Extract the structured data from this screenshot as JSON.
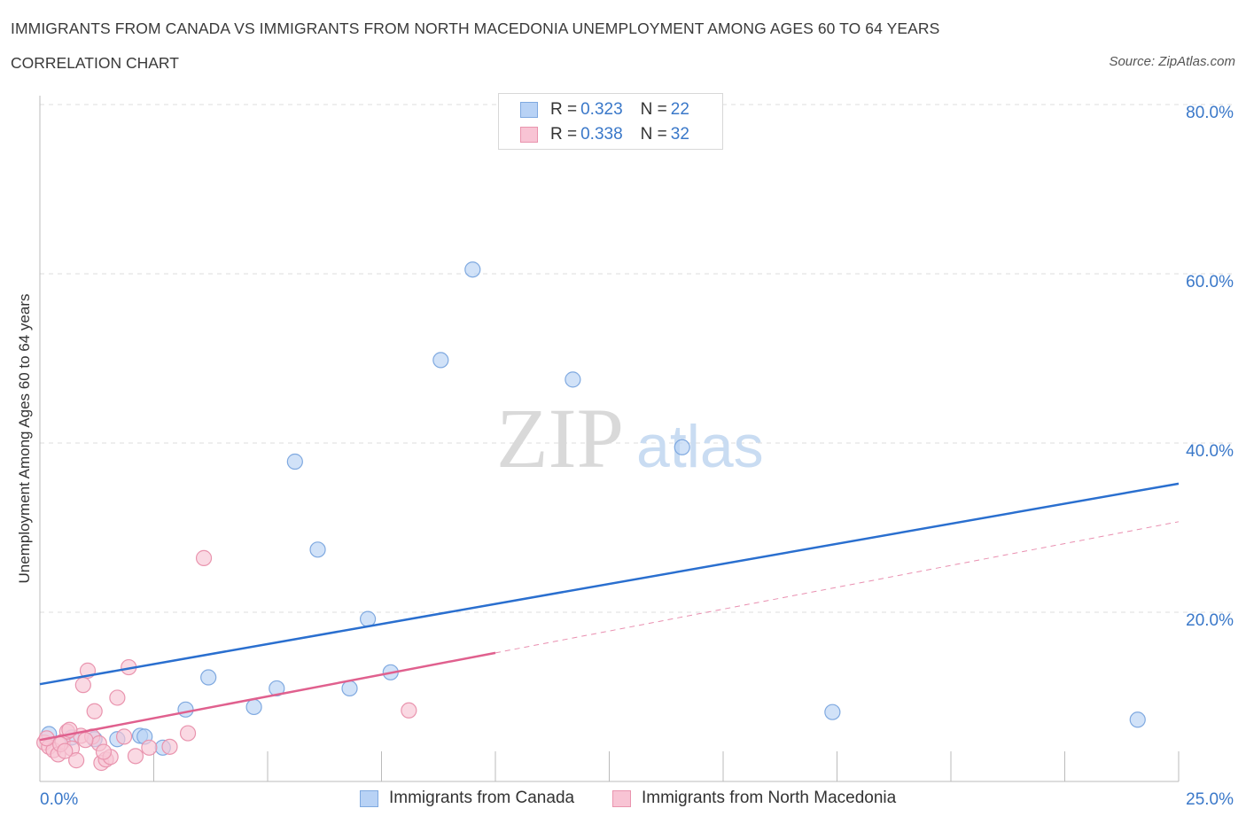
{
  "title": "IMMIGRANTS FROM CANADA VS IMMIGRANTS FROM NORTH MACEDONIA UNEMPLOYMENT AMONG AGES 60 TO 64 YEARS",
  "subtitle": "CORRELATION CHART",
  "source": "Source: ZipAtlas.com",
  "watermark": {
    "zip": "ZIP",
    "atlas": "atlas"
  },
  "colors": {
    "canada_fill": "#b8d2f5",
    "canada_stroke": "#7fa9e0",
    "canada_line": "#2a6fcf",
    "macedonia_fill": "#f8c4d4",
    "macedonia_stroke": "#e994ae",
    "macedonia_line": "#e0608e",
    "axis_text": "#3a78c9",
    "grid": "#dddddd"
  },
  "legend": {
    "rows": [
      {
        "r_label": "R =",
        "r_value": "0.323",
        "n_label": "N =",
        "n_value": "22"
      },
      {
        "r_label": "R =",
        "r_value": "0.338",
        "n_label": "N =",
        "n_value": "32"
      }
    ]
  },
  "chart_data": {
    "type": "scatter",
    "title": "IMMIGRANTS FROM CANADA VS IMMIGRANTS FROM NORTH MACEDONIA UNEMPLOYMENT AMONG AGES 60 TO 64 YEARS",
    "xlabel": "",
    "ylabel": "Unemployment Among Ages 60 to 64 years",
    "xlim": [
      0,
      25
    ],
    "ylim": [
      0,
      80
    ],
    "x_tick_labels": [
      "0.0%",
      "25.0%"
    ],
    "y_ticks": [
      20,
      40,
      60,
      80
    ],
    "y_tick_labels": [
      "20.0%",
      "40.0%",
      "60.0%",
      "80.0%"
    ],
    "legend_placement": "bottom",
    "series": [
      {
        "name": "Immigrants from Canada",
        "points": [
          [
            0.2,
            5.6
          ],
          [
            0.7,
            5.2
          ],
          [
            1.2,
            5.0
          ],
          [
            1.7,
            5.0
          ],
          [
            2.2,
            5.4
          ],
          [
            2.7,
            4.0
          ],
          [
            3.2,
            8.5
          ],
          [
            3.7,
            12.3
          ],
          [
            4.7,
            8.8
          ],
          [
            5.2,
            11.0
          ],
          [
            5.6,
            37.8
          ],
          [
            6.1,
            27.4
          ],
          [
            6.8,
            11.0
          ],
          [
            7.2,
            19.2
          ],
          [
            7.7,
            12.9
          ],
          [
            8.8,
            49.8
          ],
          [
            9.5,
            60.5
          ],
          [
            11.7,
            47.5
          ],
          [
            14.1,
            39.5
          ],
          [
            17.4,
            8.2
          ],
          [
            24.1,
            7.3
          ],
          [
            2.3,
            5.3
          ]
        ],
        "trend": {
          "x": [
            0,
            25
          ],
          "y": [
            11.5,
            35.2
          ],
          "dashed": false
        }
      },
      {
        "name": "Immigrants from North Macedonia",
        "points": [
          [
            0.1,
            4.6
          ],
          [
            0.2,
            4.1
          ],
          [
            0.3,
            3.7
          ],
          [
            0.4,
            3.2
          ],
          [
            0.5,
            4.7
          ],
          [
            0.6,
            5.9
          ],
          [
            0.7,
            3.9
          ],
          [
            0.8,
            2.5
          ],
          [
            0.9,
            5.4
          ],
          [
            0.95,
            11.4
          ],
          [
            1.05,
            13.1
          ],
          [
            1.15,
            5.3
          ],
          [
            1.2,
            8.3
          ],
          [
            1.3,
            4.5
          ],
          [
            1.35,
            2.2
          ],
          [
            1.45,
            2.6
          ],
          [
            1.55,
            2.9
          ],
          [
            1.7,
            9.9
          ],
          [
            1.85,
            5.3
          ],
          [
            1.95,
            13.5
          ],
          [
            2.1,
            3.0
          ],
          [
            2.4,
            4.0
          ],
          [
            2.85,
            4.1
          ],
          [
            3.25,
            5.7
          ],
          [
            3.6,
            26.4
          ],
          [
            8.1,
            8.4
          ],
          [
            0.15,
            5.1
          ],
          [
            0.45,
            4.4
          ],
          [
            0.65,
            6.1
          ],
          [
            1.0,
            4.9
          ],
          [
            1.4,
            3.5
          ],
          [
            0.55,
            3.6
          ]
        ],
        "trend": {
          "x": [
            0,
            10
          ],
          "y": [
            4.9,
            15.2
          ],
          "dashed": false
        },
        "trend_extension": {
          "x": [
            10,
            25
          ],
          "y": [
            15.2,
            30.7
          ],
          "dashed": true
        }
      }
    ]
  }
}
